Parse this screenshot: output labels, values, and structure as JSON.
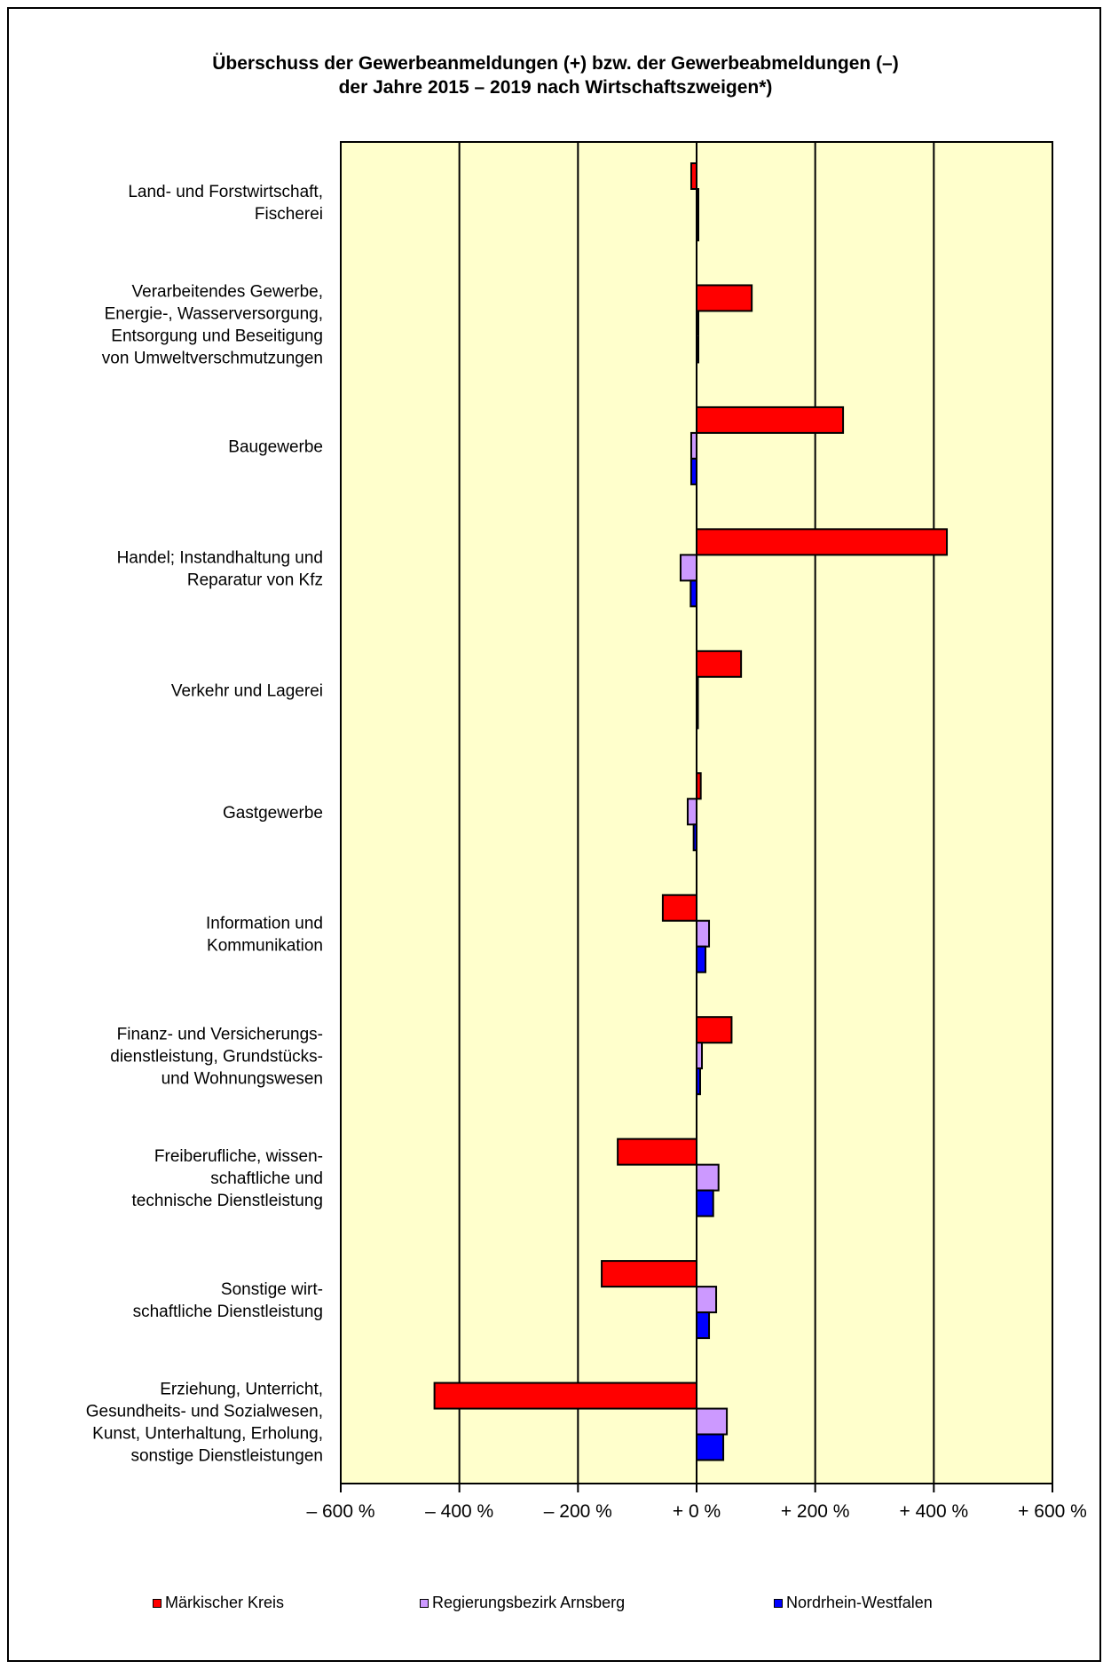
{
  "chart_data": {
    "type": "bar",
    "orientation": "horizontal",
    "title_line1": "Überschuss der Gewerbeanmeldungen (+) bzw. der Gewerbeabmeldungen (–)",
    "title_line2": "der Jahre 2015 – 2019 nach Wirtschaftszweigen*)",
    "xlim": [
      -600,
      600
    ],
    "x_ticks": [
      {
        "value": -600,
        "label": "– 600 %"
      },
      {
        "value": -400,
        "label": "– 400 %"
      },
      {
        "value": -200,
        "label": "– 200 %"
      },
      {
        "value": 0,
        "label": "+ 0 %"
      },
      {
        "value": 200,
        "label": "+ 200 %"
      },
      {
        "value": 400,
        "label": "+ 400 %"
      },
      {
        "value": 600,
        "label": "+ 600 %"
      }
    ],
    "grid": true,
    "plot_background": "#ffffcc",
    "legend_position": "bottom",
    "categories": [
      [
        "Land- und Forstwirtschaft,",
        "Fischerei"
      ],
      [
        "Verarbeitendes Gewerbe,",
        "Energie-, Wasserversorgung,",
        "Entsorgung und Beseitigung",
        "von Umweltverschmutzungen"
      ],
      [
        "Baugewerbe"
      ],
      [
        "Handel; Instandhaltung und",
        "Reparatur von Kfz"
      ],
      [
        "Verkehr und Lagerei"
      ],
      [
        "Gastgewerbe"
      ],
      [
        "Information und",
        "Kommunikation"
      ],
      [
        "Finanz- und Versicherungs-",
        "dienstleistung, Grundstücks-",
        "und Wohnungswesen"
      ],
      [
        "Freiberufliche, wissen-",
        "schaftliche und",
        "technische Dienstleistung"
      ],
      [
        "Sonstige wirt-",
        "schaftliche Dienstleistung"
      ],
      [
        "Erziehung, Unterricht,",
        "Gesundheits- und Sozialwesen,",
        "Kunst, Unterhaltung, Erholung,",
        "sonstige Dienstleistungen"
      ]
    ],
    "series": [
      {
        "name": "Märkischer Kreis",
        "color": "#ff0000",
        "values": [
          -9,
          93,
          247,
          422,
          75,
          7,
          -57,
          59,
          -133,
          -160,
          -442
        ]
      },
      {
        "name": "Regierungsbezirk Arnsberg",
        "color": "#cc99ff",
        "values": [
          3,
          3,
          -9,
          -27,
          1,
          -15,
          21,
          9,
          37,
          33,
          51
        ]
      },
      {
        "name": "Nordrhein-Westfalen",
        "color": "#0000ff",
        "values": [
          3,
          3,
          -9,
          -10,
          1,
          -5,
          15,
          6,
          28,
          21,
          45
        ]
      }
    ]
  }
}
